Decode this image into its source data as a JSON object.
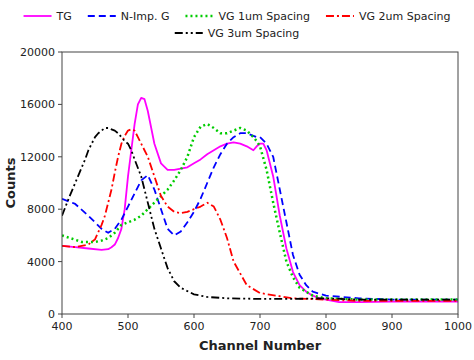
{
  "chart_data": {
    "type": "line",
    "title": "",
    "xlabel": "Channel Number",
    "ylabel": "Counts",
    "xlim": [
      400,
      1000
    ],
    "ylim": [
      0,
      20000
    ],
    "xticks": [
      400,
      500,
      600,
      700,
      800,
      900,
      1000
    ],
    "yticks": [
      0,
      4000,
      8000,
      12000,
      16000,
      20000
    ],
    "grid": false,
    "legend": "top",
    "series": [
      {
        "name": "TG",
        "color": "#ff00ff",
        "line_style": "solid",
        "x": [
          400,
          420,
          440,
          460,
          470,
          475,
          480,
          485,
          490,
          495,
          500,
          505,
          510,
          515,
          520,
          525,
          530,
          540,
          550,
          560,
          570,
          580,
          590,
          600,
          610,
          620,
          630,
          640,
          650,
          660,
          670,
          680,
          690,
          695,
          700,
          705,
          710,
          720,
          730,
          740,
          750,
          760,
          770,
          780,
          790,
          800,
          820,
          850,
          900,
          950,
          1000
        ],
        "values": [
          5200,
          5100,
          5000,
          4900,
          4950,
          5100,
          5300,
          5800,
          6500,
          8000,
          10500,
          12500,
          14500,
          16000,
          16500,
          16400,
          15500,
          13000,
          11500,
          11000,
          11000,
          11100,
          11200,
          11500,
          11800,
          12200,
          12500,
          12800,
          13000,
          13100,
          13000,
          12800,
          12500,
          12800,
          13000,
          13000,
          12500,
          10500,
          7500,
          5000,
          3200,
          2200,
          1700,
          1400,
          1200,
          1100,
          900,
          900,
          950,
          950,
          950
        ]
      },
      {
        "name": "N-Imp. G",
        "color": "#0000ff",
        "line_style": "dashed",
        "x": [
          400,
          420,
          440,
          450,
          460,
          470,
          480,
          490,
          500,
          510,
          520,
          530,
          540,
          550,
          560,
          570,
          580,
          590,
          600,
          610,
          620,
          630,
          640,
          650,
          660,
          670,
          680,
          690,
          695,
          700,
          710,
          720,
          730,
          740,
          750,
          760,
          770,
          780,
          800,
          850,
          900,
          950,
          1000
        ],
        "values": [
          8800,
          8400,
          7500,
          7000,
          6500,
          6200,
          6500,
          7200,
          8200,
          9200,
          10200,
          10600,
          9500,
          8000,
          6500,
          6000,
          6300,
          7000,
          7800,
          8800,
          10000,
          11200,
          12200,
          13000,
          13500,
          13800,
          13800,
          13600,
          13500,
          13500,
          13000,
          12000,
          9500,
          7000,
          4500,
          3000,
          2200,
          1700,
          1400,
          1200,
          1100,
          1100,
          1100
        ]
      },
      {
        "name": "VG 1um Spacing",
        "color": "#00cc00",
        "line_style": "dotted",
        "x": [
          400,
          430,
          450,
          460,
          470,
          480,
          490,
          500,
          510,
          520,
          530,
          540,
          550,
          560,
          570,
          580,
          590,
          600,
          610,
          620,
          630,
          640,
          650,
          660,
          670,
          680,
          690,
          695,
          700,
          710,
          720,
          730,
          740,
          750,
          760,
          780,
          800,
          850,
          900,
          950,
          1000
        ],
        "values": [
          6000,
          5500,
          5500,
          5600,
          5800,
          6200,
          6800,
          7000,
          7200,
          7500,
          8000,
          8500,
          9000,
          9500,
          10200,
          11000,
          12000,
          13500,
          14300,
          14500,
          14200,
          13800,
          13800,
          14000,
          14200,
          14000,
          13500,
          13200,
          12800,
          11000,
          8500,
          6200,
          4000,
          2800,
          2000,
          1400,
          1200,
          1100,
          1100,
          1100,
          1100
        ]
      },
      {
        "name": "VG 2um Spacing",
        "color": "#ff0000",
        "line_style": "dashdot",
        "x": [
          400,
          420,
          440,
          450,
          460,
          465,
          470,
          475,
          480,
          485,
          490,
          495,
          500,
          505,
          510,
          515,
          520,
          525,
          530,
          540,
          550,
          560,
          570,
          580,
          590,
          600,
          610,
          620,
          630,
          640,
          650,
          660,
          680,
          700,
          750,
          800,
          850,
          900,
          950,
          1000
        ],
        "values": [
          5200,
          5100,
          5300,
          5700,
          6800,
          7500,
          8500,
          9500,
          10800,
          12000,
          13000,
          13600,
          14000,
          14100,
          14000,
          13500,
          13000,
          12500,
          12000,
          10500,
          9000,
          8200,
          7800,
          7700,
          7800,
          8000,
          8200,
          8500,
          8200,
          7200,
          5800,
          4000,
          2200,
          1600,
          1200,
          1100,
          1000,
          1000,
          1000,
          1000
        ]
      },
      {
        "name": "VG 3um Spacing",
        "color": "#000000",
        "line_style": "dashdotdot",
        "x": [
          400,
          410,
          420,
          430,
          435,
          440,
          445,
          450,
          455,
          460,
          465,
          470,
          475,
          480,
          485,
          490,
          495,
          500,
          505,
          510,
          520,
          530,
          540,
          550,
          560,
          570,
          580,
          600,
          620,
          650,
          700,
          750,
          800,
          850,
          900,
          950,
          1000
        ],
        "values": [
          7500,
          8800,
          10000,
          11200,
          11800,
          12500,
          13000,
          13500,
          13800,
          14000,
          14200,
          14200,
          14100,
          14000,
          13800,
          13500,
          13200,
          13000,
          12500,
          11800,
          10500,
          8500,
          6500,
          5000,
          3500,
          2500,
          2000,
          1500,
          1300,
          1200,
          1150,
          1150,
          1200,
          1100,
          1100,
          1100,
          1100
        ]
      }
    ]
  }
}
